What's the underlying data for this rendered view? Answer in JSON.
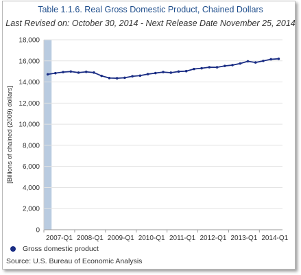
{
  "chart_data": {
    "type": "line",
    "title": "Table 1.1.6. Real Gross Domestic Product, Chained Dollars",
    "subtitle": "Last Revised on: October 30, 2014 - Next Release Date November 25, 2014",
    "ylabel": "[Billions of chained (2009) dollars]",
    "xlabel": "",
    "ylim": [
      0,
      18000
    ],
    "yticks": [
      0,
      2000,
      4000,
      6000,
      8000,
      10000,
      12000,
      14000,
      16000,
      18000
    ],
    "ytick_labels": [
      "0",
      "2,000",
      "4,000",
      "6,000",
      "8,000",
      "10,000",
      "12,000",
      "14,000",
      "16,000",
      "18,000"
    ],
    "x": [
      "2007-Q1",
      "2007-Q2",
      "2007-Q3",
      "2007-Q4",
      "2008-Q1",
      "2008-Q2",
      "2008-Q3",
      "2008-Q4",
      "2009-Q1",
      "2009-Q2",
      "2009-Q3",
      "2009-Q4",
      "2010-Q1",
      "2010-Q2",
      "2010-Q3",
      "2010-Q4",
      "2011-Q1",
      "2011-Q2",
      "2011-Q3",
      "2011-Q4",
      "2012-Q1",
      "2012-Q2",
      "2012-Q3",
      "2012-Q4",
      "2013-Q1",
      "2013-Q2",
      "2013-Q3",
      "2013-Q4",
      "2014-Q1",
      "2014-Q2",
      "2014-Q3"
    ],
    "xtick_labels": [
      "2007-Q1",
      "2008-Q1",
      "2009-Q1",
      "2010-Q1",
      "2011-Q1",
      "2012-Q1",
      "2013-Q1",
      "2014-Q1"
    ],
    "grid": true,
    "highlight_band": "2007-Q1",
    "legend_position": "bottom-left",
    "series": [
      {
        "name": "Gross domestic product",
        "color": "#1a2d84",
        "values": [
          14725,
          14838,
          14938,
          14991,
          14889,
          14964,
          14892,
          14577,
          14375,
          14356,
          14402,
          14541,
          14604,
          14745,
          14845,
          14939,
          14882,
          14990,
          15030,
          15230,
          15302,
          15400,
          15395,
          15520,
          15600,
          15750,
          15960,
          15850,
          16000,
          16150,
          16200
        ]
      }
    ]
  },
  "source": "Source: U.S. Bureau of Economic Analysis"
}
